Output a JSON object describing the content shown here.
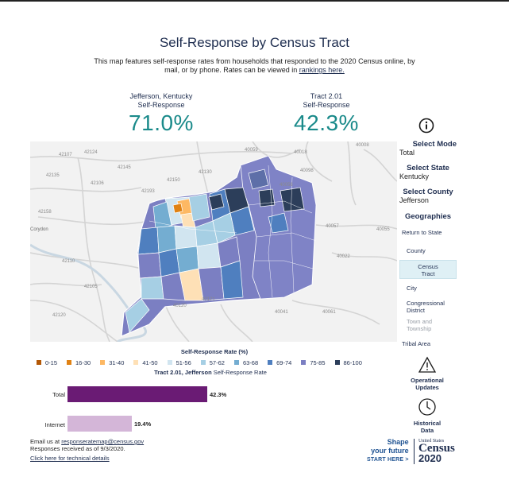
{
  "title": "Self-Response by Census Tract",
  "subtitle": {
    "text": "This map features self-response rates from households that responded to the 2020 Census online, by mail, or by phone. Rates can be viewed in",
    "link": "rankings here."
  },
  "stats": [
    {
      "name": "Jefferson, Kentucky",
      "label": "Self-Response",
      "value": "71.0%"
    },
    {
      "name": "Tract 2.01",
      "label": "Self-Response",
      "value": "42.3%"
    }
  ],
  "map": {
    "place_labels": [
      "Corydon"
    ],
    "route_labels": [
      "42107",
      "42124",
      "42145",
      "42193",
      "42106",
      "42135",
      "42130",
      "42150",
      "42158",
      "40059",
      "40018",
      "40098",
      "40008",
      "40056",
      "40057",
      "40055",
      "40022",
      "42110",
      "40120",
      "40121",
      "40041",
      "40061",
      "42105",
      "42120"
    ]
  },
  "sidebar": {
    "info_icon": "info-icon",
    "select_mode": {
      "label": "Select Mode",
      "value": "Total"
    },
    "select_state": {
      "label": "Select State",
      "value": "Kentucky"
    },
    "select_county": {
      "label": "Select County",
      "value": "Jefferson"
    },
    "geographies": {
      "label": "Geographies",
      "items": [
        "Return to State",
        "County",
        "Census Tract",
        "City",
        "Congressional District",
        "Town and Township",
        "Tribal Area"
      ],
      "selected": "Census Tract"
    },
    "operational": "Operational Updates",
    "historical": "Historical Data"
  },
  "legend": {
    "title": "Self-Response Rate (%)",
    "items": [
      {
        "label": "0-15",
        "color": "#b35806"
      },
      {
        "label": "16-30",
        "color": "#e08214"
      },
      {
        "label": "31-40",
        "color": "#fdb863"
      },
      {
        "label": "41-50",
        "color": "#fee0b6"
      },
      {
        "label": "51-56",
        "color": "#d1e5f0"
      },
      {
        "label": "57-62",
        "color": "#a6cfe4"
      },
      {
        "label": "63-68",
        "color": "#74add1"
      },
      {
        "label": "69-74",
        "color": "#4f7fbf"
      },
      {
        "label": "75-85",
        "color": "#7b7fc2"
      },
      {
        "label": "86-100",
        "color": "#2c3e5a"
      }
    ]
  },
  "tract_rate": {
    "bold": "Tract 2.01, Jefferson",
    "text": "Self-Response Rate"
  },
  "bars": [
    {
      "label": "Total",
      "value": "42.3%",
      "pct": 42.3,
      "color": "#6a1b74"
    },
    {
      "label": "Internet",
      "value": "19.4%",
      "pct": 19.4,
      "color": "#d4b6d8"
    }
  ],
  "footer": {
    "email_prefix": "Email us at",
    "email": "responseratemap@census.gov",
    "received": "Responses received as of 9/3/2020.",
    "technical": "Click here for technical details"
  },
  "branding": {
    "shape1": "Shape",
    "shape2": "your future",
    "start": "START HERE >",
    "us": "United States",
    "census": "Census",
    "year": "2020"
  }
}
